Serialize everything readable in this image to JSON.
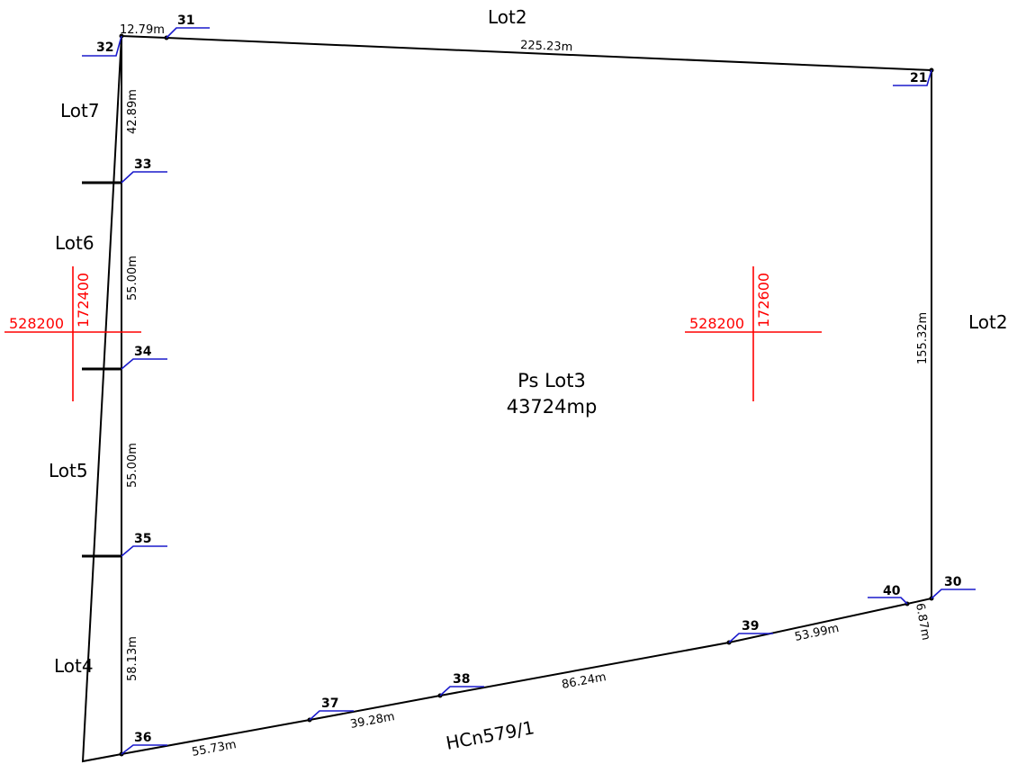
{
  "parcel": {
    "name": "Ps Lot3",
    "area": "43724mp"
  },
  "road": "HCn579/1",
  "neighbors": {
    "north": "Lot2",
    "east": "Lot2",
    "west_1": "Lot7",
    "west_2": "Lot6",
    "west_3": "Lot5",
    "west_4": "Lot4"
  },
  "points": {
    "p21": "21",
    "p30": "30",
    "p31": "31",
    "p32": "32",
    "p33": "33",
    "p34": "34",
    "p35": "35",
    "p36": "36",
    "p37": "37",
    "p38": "38",
    "p39": "39",
    "p40": "40"
  },
  "distances": {
    "d32_31": "12.79m",
    "d31_21": "225.23m",
    "d21_30": "155.32m",
    "d30_40": "6.87m",
    "d40_39": "53.99m",
    "d39_38": "86.24m",
    "d38_37": "39.28m",
    "d37_36": "55.73m",
    "d36_35": "58.13m",
    "d35_34": "55.00m",
    "d34_33": "55.00m",
    "d33_32": "42.89m"
  },
  "grid": {
    "west": {
      "x": "528200",
      "y": "172400"
    },
    "east": {
      "x": "528200",
      "y": "172600"
    }
  },
  "colors": {
    "boundary": "#000000",
    "leader": "#1a1acc",
    "grid": "#ff0000"
  }
}
